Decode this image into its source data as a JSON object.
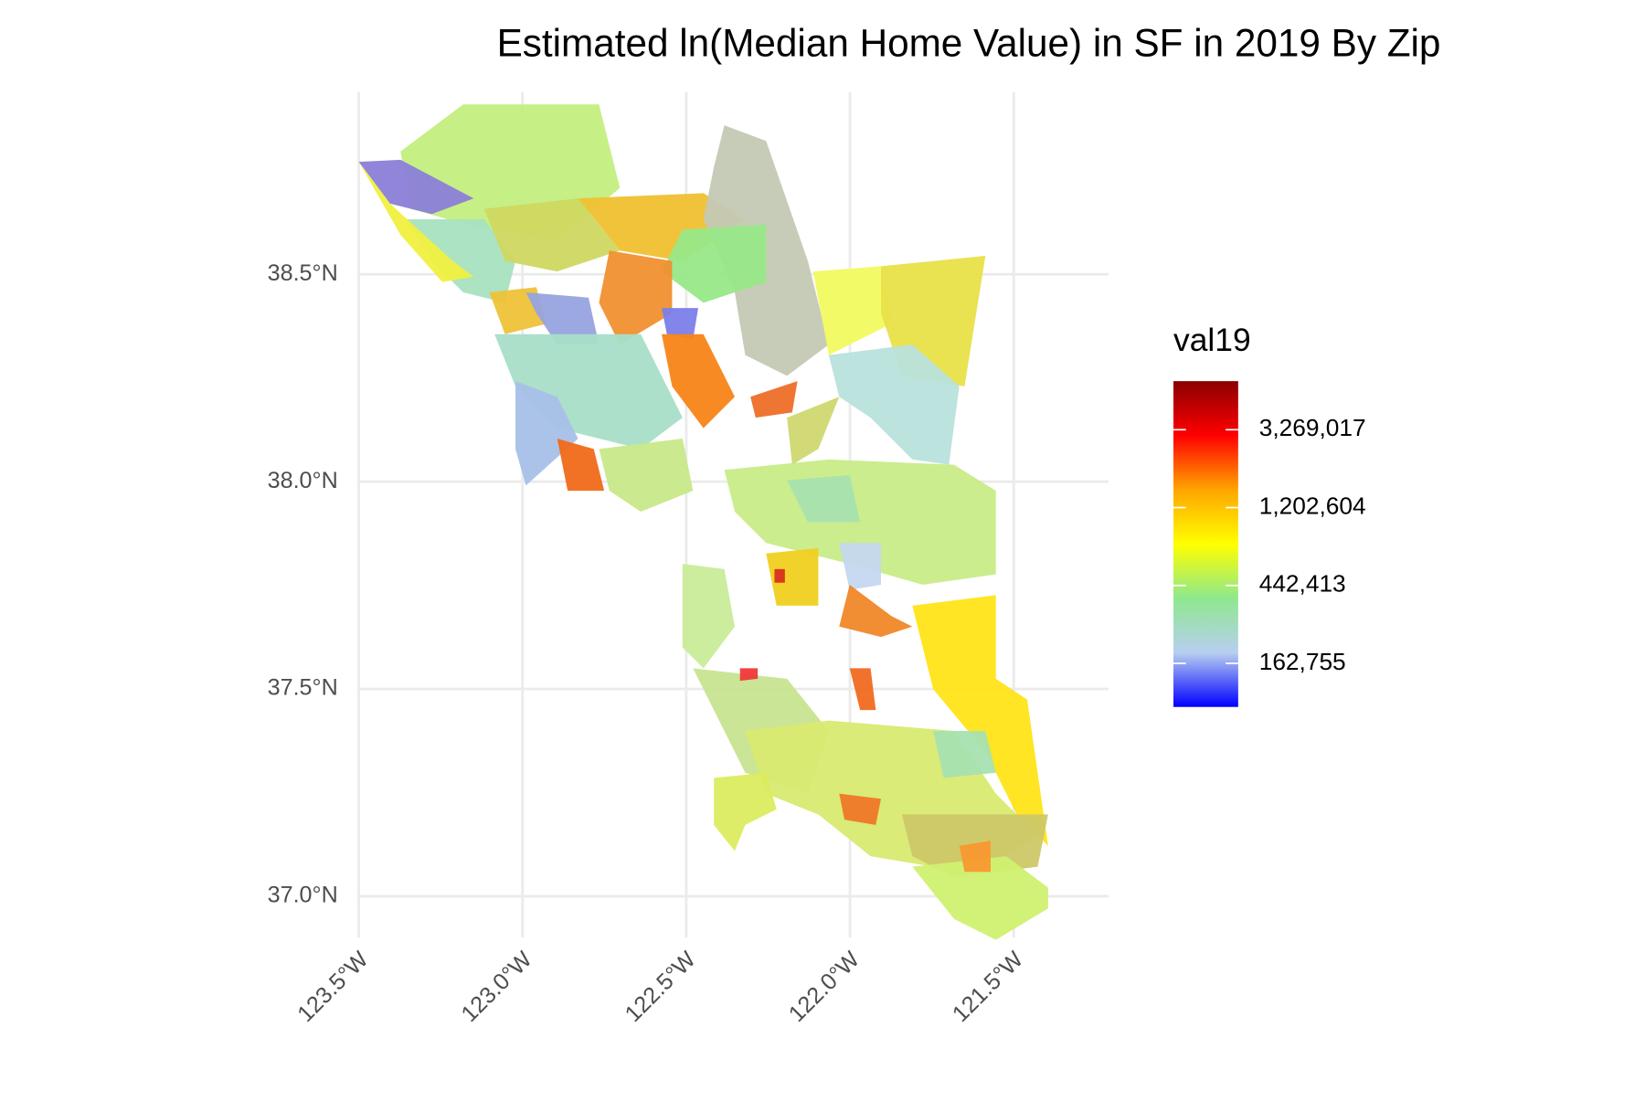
{
  "chart_data": {
    "type": "map",
    "title": "Estimated ln(Median Home Value) in SF in 2019 By Zip",
    "xlim": [
      -123.5,
      -121.21
    ],
    "ylim": [
      36.9,
      38.94
    ],
    "xticks": [
      {
        "value": -123.5,
        "label": "123.5°W"
      },
      {
        "value": -123.0,
        "label": "123.0°W"
      },
      {
        "value": -122.5,
        "label": "122.5°W"
      },
      {
        "value": -122.0,
        "label": "122.0°W"
      },
      {
        "value": -121.5,
        "label": "121.5°W"
      }
    ],
    "yticks": [
      {
        "value": 37.0,
        "label": "37.0°N"
      },
      {
        "value": 37.5,
        "label": "37.5°N"
      },
      {
        "value": 38.0,
        "label": "38.0°N"
      },
      {
        "value": 38.5,
        "label": "38.5°N"
      }
    ],
    "grid": true,
    "legend": {
      "title": "val19",
      "log_scale": true,
      "lim": [
        93000,
        6100000
      ],
      "colors": [
        "#0000ff",
        "#b8cff0",
        "#8ee88e",
        "#ffff00",
        "#ffa500",
        "#ff0000",
        "#8b0000"
      ],
      "ticks": [
        {
          "value": 162755,
          "label": "162,755"
        },
        {
          "value": 442413,
          "label": "442,413"
        },
        {
          "value": 1202604,
          "label": "1,202,604"
        },
        {
          "value": 3269017,
          "label": "3,269,017"
        }
      ]
    }
  }
}
